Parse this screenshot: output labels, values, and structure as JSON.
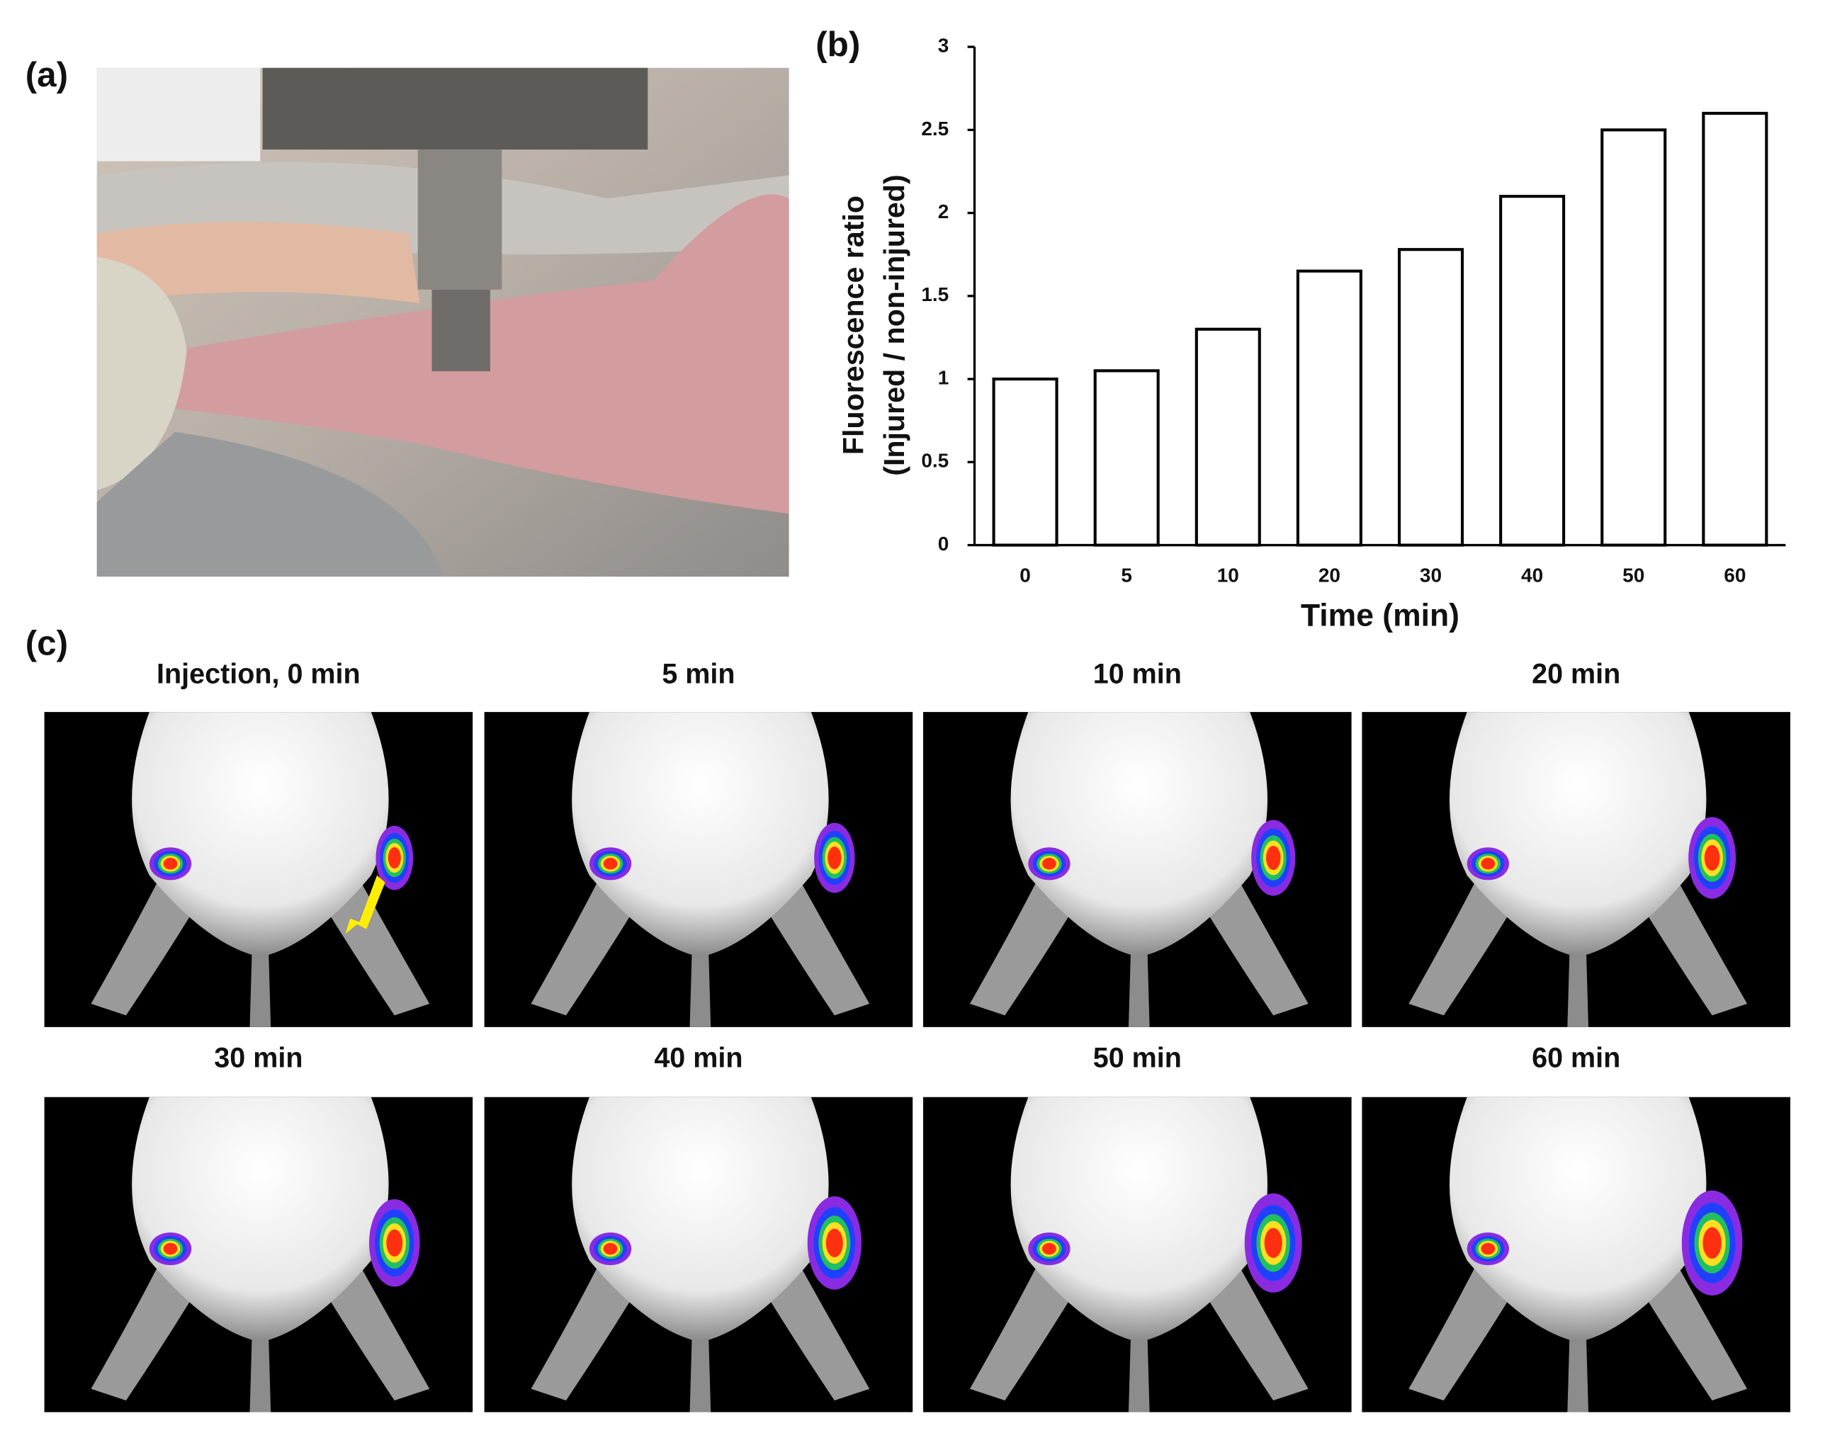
{
  "panels": {
    "a": {
      "label": "(a)"
    },
    "c": {
      "label": "(c)",
      "captions": [
        "Injection, 0 min",
        "5 min",
        "10 min",
        "20 min",
        "30 min",
        "40 min",
        "50 min",
        "60 min"
      ]
    }
  },
  "chart_data": {
    "type": "bar",
    "panel_label": "(b)",
    "xlabel": "Time (min)",
    "ylabel": [
      "Fluorescence ratio",
      "(Injured / non-injured)"
    ],
    "categories": [
      "0",
      "5",
      "10",
      "20",
      "30",
      "40",
      "50",
      "60"
    ],
    "values": [
      1,
      1.05,
      1.3,
      1.65,
      1.78,
      2.1,
      2.5,
      2.6
    ],
    "color": "#ffffff",
    "edgecolor": "#000000",
    "ylim": [
      0,
      3
    ],
    "yticks": [
      0,
      0.5,
      1,
      1.5,
      2,
      2.5,
      3
    ],
    "grid": false
  }
}
